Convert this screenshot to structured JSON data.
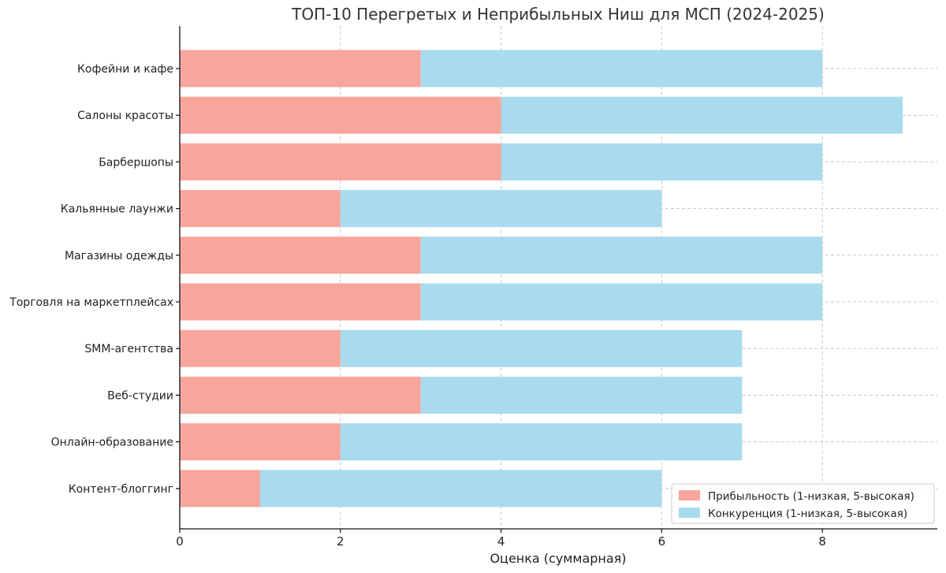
{
  "chart_data": {
    "type": "bar",
    "orientation": "horizontal",
    "stacked": true,
    "title": "ТОП-10 Перегретых и Неприбыльных Ниш для МСП (2024-2025)",
    "xlabel": "Оценка (суммарная)",
    "ylabel": "",
    "xlim": [
      0,
      9.4
    ],
    "xticks": [
      0,
      2,
      4,
      6,
      8
    ],
    "grid": true,
    "legend_position": "lower-right",
    "categories": [
      "Кофейни и кафе",
      "Салоны красоты",
      "Барбершопы",
      "Кальянные лаунжи",
      "Магазины одежды",
      "Торговля на маркетплейсах",
      "SMM-агентства",
      "Веб-студии",
      "Онлайн-образование",
      "Контент-блоггинг"
    ],
    "series": [
      {
        "name": "Прибыльность (1-низкая, 5-высокая)",
        "color": "#f8a59c",
        "values": [
          3,
          4,
          4,
          2,
          3,
          3,
          2,
          3,
          2,
          1
        ]
      },
      {
        "name": "Конкуренция (1-низкая, 5-высокая)",
        "color": "#a8dbee",
        "values": [
          5,
          5,
          4,
          4,
          5,
          5,
          5,
          4,
          5,
          5
        ]
      }
    ]
  }
}
